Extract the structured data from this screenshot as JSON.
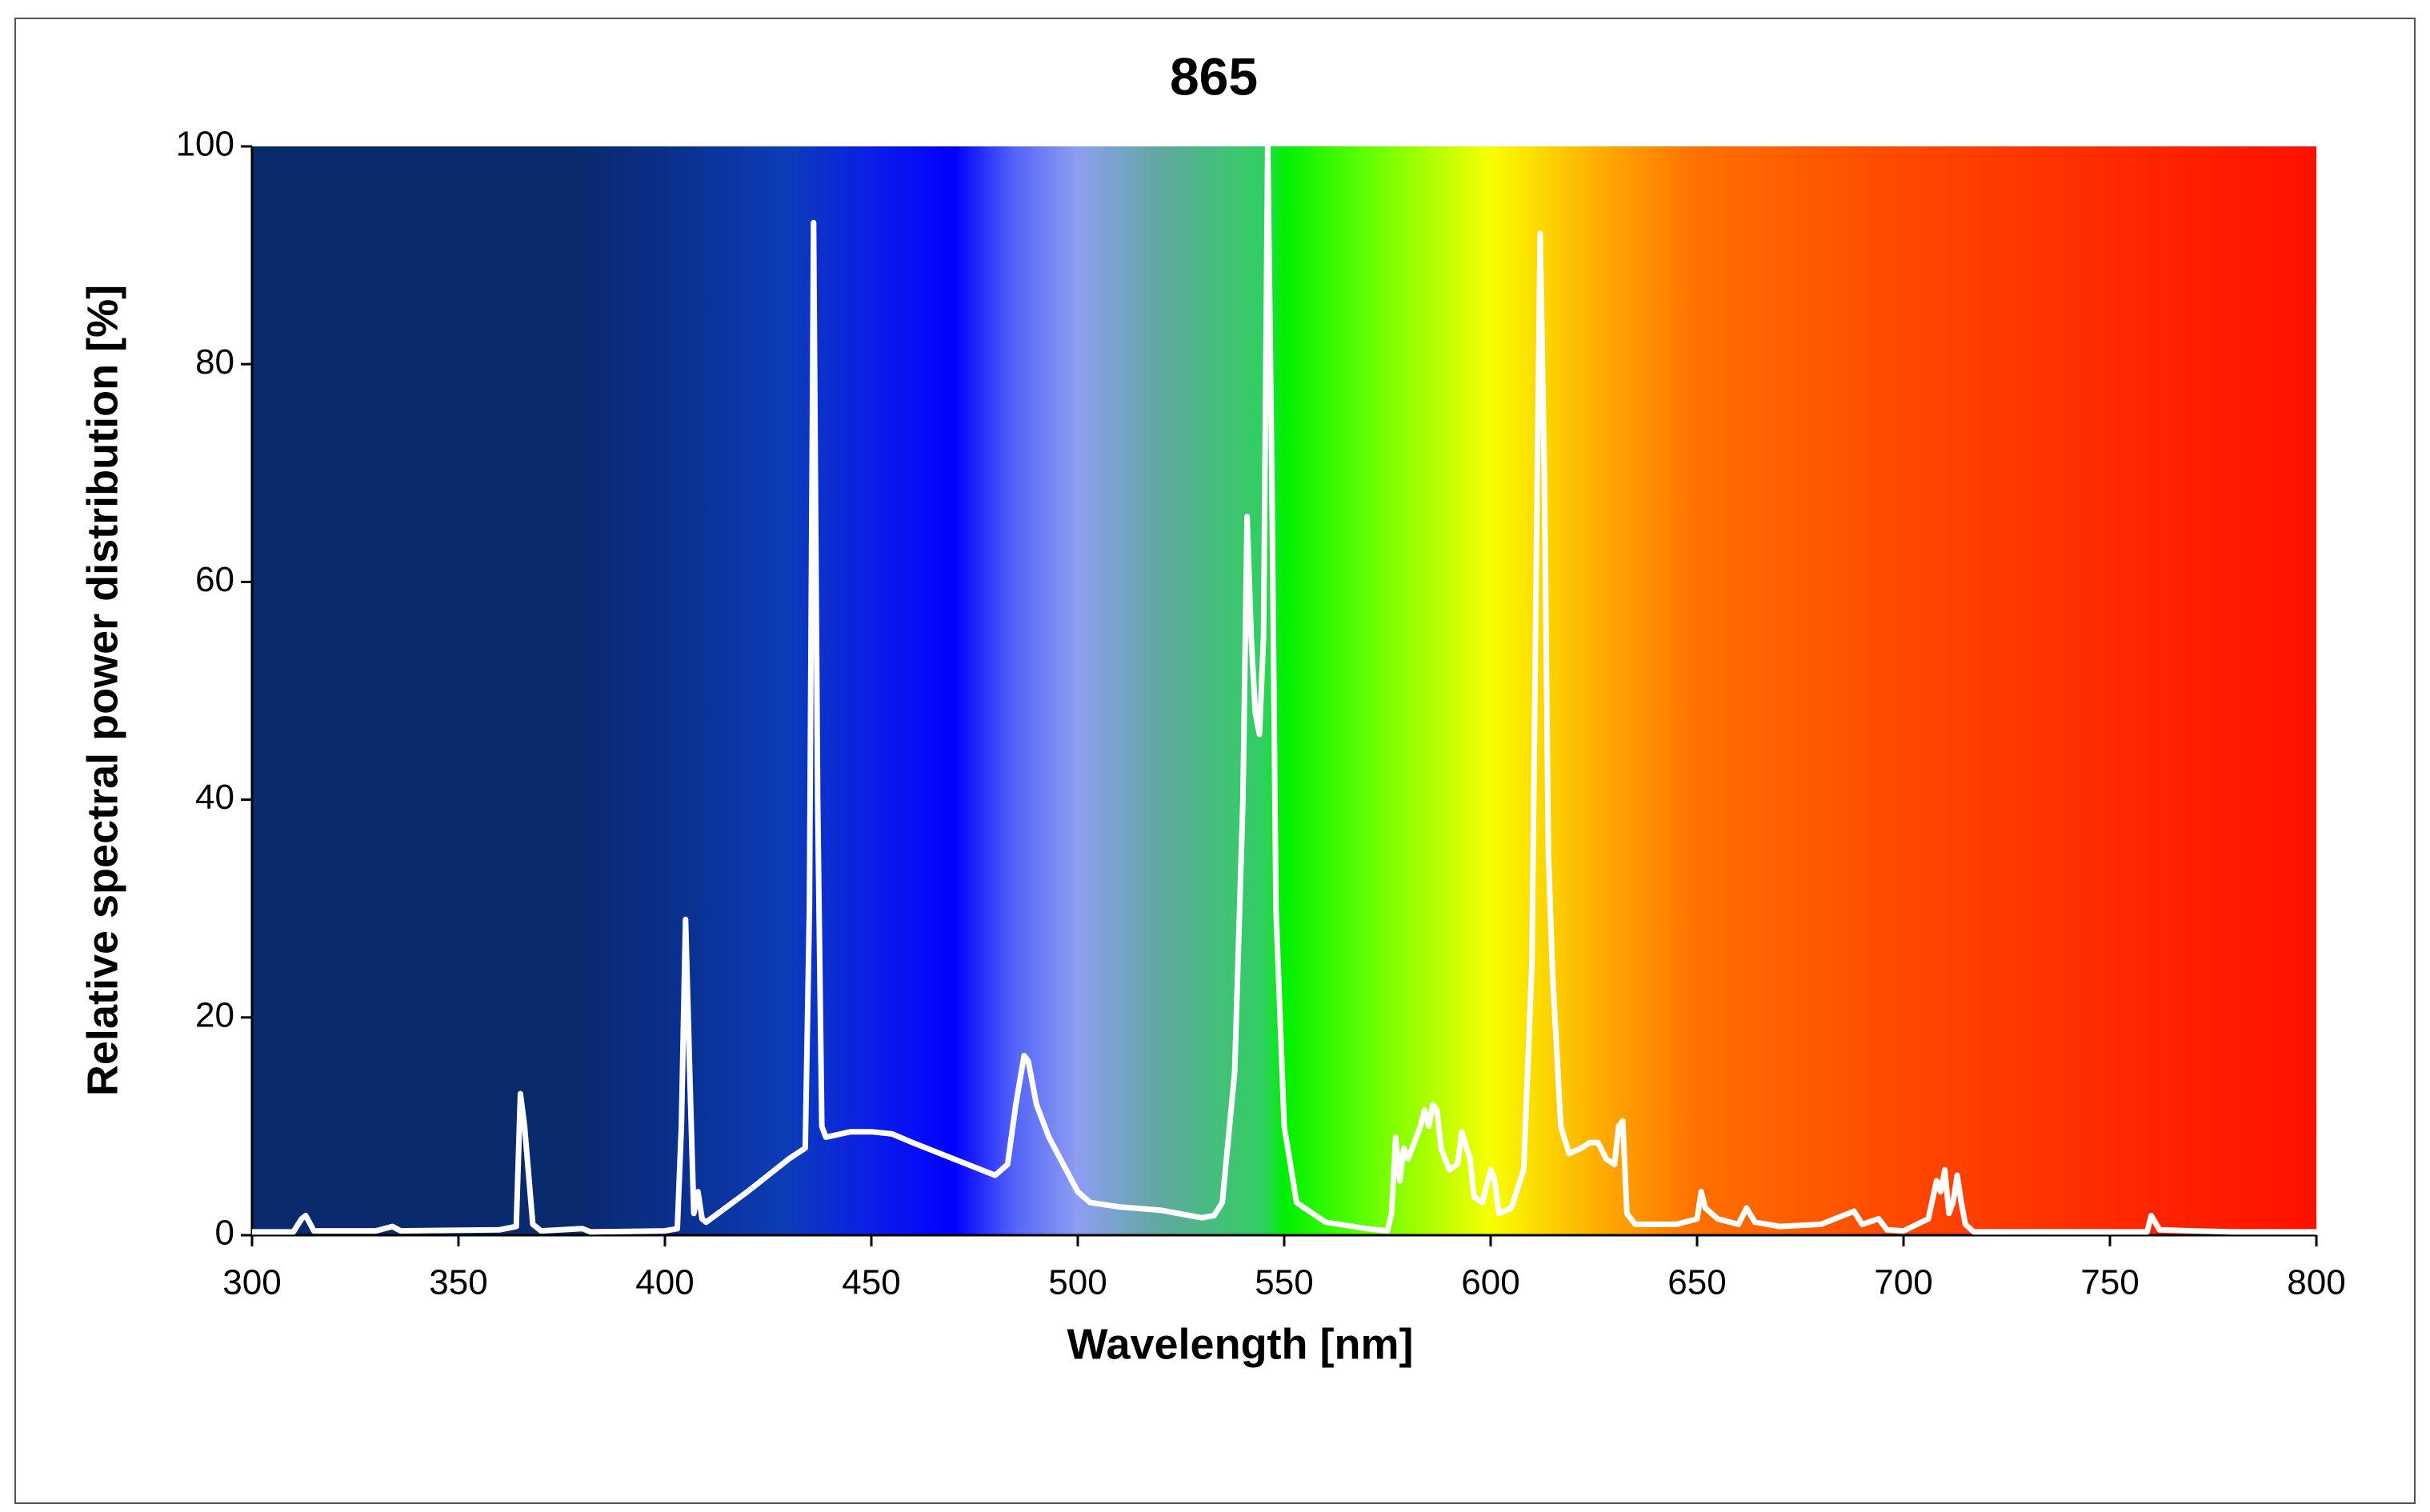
{
  "chart_data": {
    "type": "line",
    "title": "865",
    "x_label": "Wavelength [nm]",
    "y_label": "Relative spectral power distribution [%]",
    "xlim": [
      300,
      800
    ],
    "ylim": [
      0,
      100
    ],
    "xticks": [
      300,
      350,
      400,
      450,
      500,
      550,
      600,
      650,
      700,
      750,
      800
    ],
    "yticks": [
      0,
      20,
      40,
      60,
      80,
      100
    ],
    "grid": false,
    "x": [
      300,
      310,
      312,
      313,
      315,
      330,
      334,
      336,
      360,
      364,
      365,
      366,
      368,
      370,
      380,
      382,
      400,
      403,
      404,
      405,
      406,
      407,
      408,
      409,
      410,
      420,
      430,
      434,
      435,
      436,
      437,
      438,
      439,
      445,
      450,
      455,
      460,
      470,
      480,
      483,
      485,
      487,
      488,
      490,
      493,
      500,
      503,
      510,
      520,
      530,
      533,
      535,
      538,
      540,
      541,
      542,
      543,
      544,
      545,
      546,
      547,
      548,
      550,
      553,
      560,
      570,
      575,
      576,
      577,
      578,
      579,
      580,
      583,
      584,
      585,
      586,
      587,
      588,
      590,
      592,
      593,
      595,
      596,
      598,
      600,
      601,
      602,
      605,
      608,
      610,
      611,
      612,
      613,
      614,
      615,
      617,
      619,
      622,
      624,
      626,
      628,
      630,
      631,
      632,
      633,
      635,
      645,
      650,
      651,
      652,
      655,
      660,
      662,
      664,
      670,
      680,
      688,
      690,
      694,
      696,
      700,
      706,
      708,
      709,
      710,
      711,
      712,
      713,
      714,
      715,
      717,
      740,
      759,
      760,
      762,
      770,
      780,
      800
    ],
    "series": [
      {
        "color": "#ffffff",
        "values": [
          0.3,
          0.3,
          1.5,
          1.8,
          0.4,
          0.4,
          0.8,
          0.4,
          0.5,
          0.8,
          13,
          10,
          1,
          0.4,
          0.6,
          0.3,
          0.4,
          0.6,
          10,
          29,
          15,
          2,
          4,
          1.5,
          1.2,
          4,
          7,
          8,
          30,
          93,
          40,
          10,
          9,
          9.5,
          9.5,
          9.3,
          8.5,
          7,
          5.5,
          6.5,
          12,
          16.5,
          16,
          12,
          9,
          4,
          3,
          2.6,
          2.3,
          1.6,
          1.8,
          3,
          15,
          40,
          66,
          55,
          48,
          46,
          55,
          100,
          70,
          30,
          10,
          3,
          1.2,
          0.6,
          0.4,
          2,
          9,
          5,
          8,
          7,
          10,
          11.5,
          10,
          12,
          11.5,
          8,
          6,
          6.5,
          9.5,
          7,
          3.5,
          3,
          6,
          5,
          2,
          2.5,
          6,
          25,
          60,
          92,
          70,
          35,
          24,
          10,
          7.5,
          8,
          8.5,
          8.5,
          7,
          6.5,
          10,
          10.5,
          2,
          1,
          1,
          1.5,
          4,
          2.5,
          1.5,
          1,
          2.5,
          1.2,
          0.8,
          1,
          2.2,
          1,
          1.5,
          0.5,
          0.4,
          1.5,
          5,
          4,
          6,
          2,
          3,
          5.5,
          3,
          1,
          0.3,
          0.3,
          0.3,
          1.8,
          0.5,
          0.4,
          0.3,
          0.3
        ]
      }
    ]
  }
}
